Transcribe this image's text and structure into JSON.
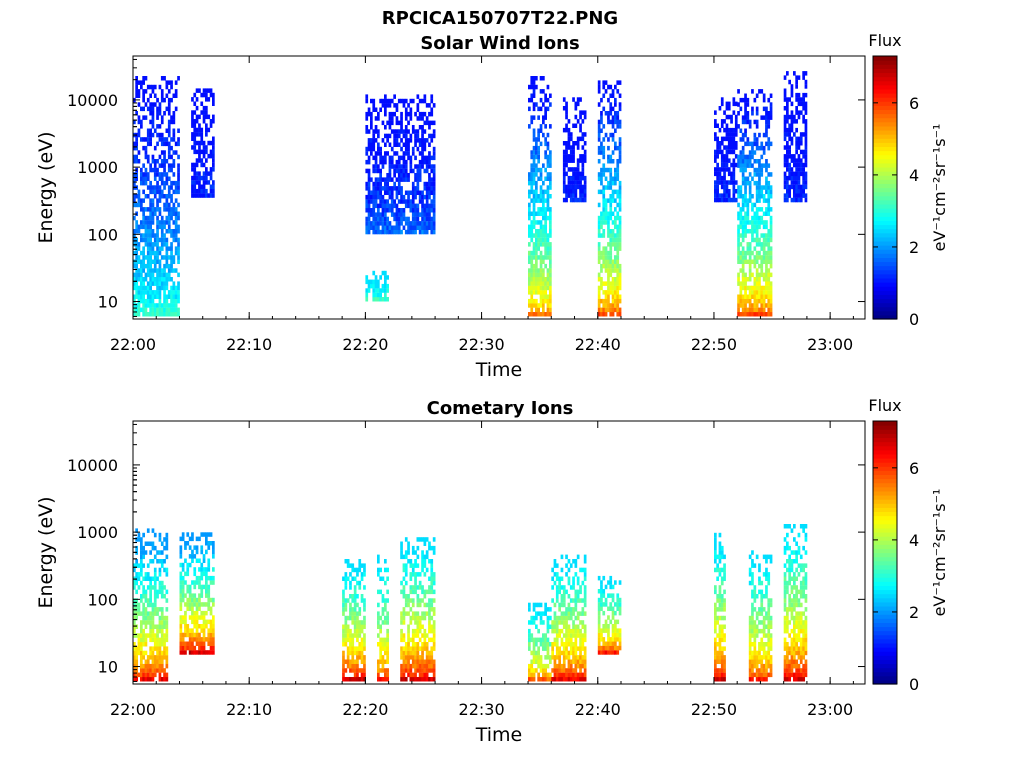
{
  "figure_title": "RPCICA150707T22.PNG",
  "chart_data": [
    {
      "type": "heatmap",
      "title": "Solar Wind Ions",
      "xlabel": "Time",
      "ylabel": "Energy (eV)",
      "yscale": "log",
      "xlim": [
        "22:00",
        "23:03"
      ],
      "ylim": [
        5.5,
        45000
      ],
      "x_ticks": [
        "22:00",
        "22:10",
        "22:20",
        "22:30",
        "22:40",
        "22:50",
        "23:00"
      ],
      "y_ticks": [
        10,
        100,
        1000,
        10000
      ],
      "y_tick_labels": [
        "10",
        "100",
        "1000",
        "10000"
      ],
      "colorbar": {
        "title": "Flux",
        "label": "eV⁻¹cm⁻²sr⁻¹s⁻¹",
        "range": [
          0,
          7.3
        ],
        "ticks": [
          "0",
          "2",
          "4",
          "6"
        ],
        "colormap": "jet"
      },
      "bursts": [
        {
          "start": "22:00",
          "end": "22:04",
          "energy_range": [
            6,
            20000
          ],
          "flux_range": [
            1.0,
            3.5
          ]
        },
        {
          "start": "22:05",
          "end": "22:07",
          "energy_range": [
            350,
            14000
          ],
          "flux_range": [
            1.0,
            1.5
          ]
        },
        {
          "start": "22:20",
          "end": "22:22",
          "energy_range": [
            10,
            25
          ],
          "flux_range": [
            2.5,
            3.5
          ]
        },
        {
          "start": "22:20",
          "end": "22:26",
          "energy_range": [
            100,
            12000
          ],
          "flux_range": [
            1.0,
            2.0
          ]
        },
        {
          "start": "22:34",
          "end": "22:36",
          "energy_range": [
            6,
            20000
          ],
          "flux_range": [
            1.0,
            5.8
          ]
        },
        {
          "start": "22:37",
          "end": "22:39",
          "energy_range": [
            300,
            10000
          ],
          "flux_range": [
            1.0,
            1.5
          ]
        },
        {
          "start": "22:40",
          "end": "22:42",
          "energy_range": [
            6,
            18000
          ],
          "flux_range": [
            1.0,
            6.2
          ]
        },
        {
          "start": "22:50",
          "end": "22:52",
          "energy_range": [
            300,
            10000
          ],
          "flux_range": [
            1.0,
            1.5
          ]
        },
        {
          "start": "22:52",
          "end": "22:55",
          "energy_range": [
            6,
            13000
          ],
          "flux_range": [
            1.0,
            6.2
          ]
        },
        {
          "start": "22:56",
          "end": "22:58",
          "energy_range": [
            300,
            25000
          ],
          "flux_range": [
            1.0,
            1.5
          ]
        }
      ]
    },
    {
      "type": "heatmap",
      "title": "Cometary Ions",
      "xlabel": "Time",
      "ylabel": "Energy (eV)",
      "yscale": "log",
      "xlim": [
        "22:00",
        "23:03"
      ],
      "ylim": [
        5.5,
        45000
      ],
      "x_ticks": [
        "22:00",
        "22:10",
        "22:20",
        "22:30",
        "22:40",
        "22:50",
        "23:00"
      ],
      "y_ticks": [
        10,
        100,
        1000,
        10000
      ],
      "y_tick_labels": [
        "10",
        "100",
        "1000",
        "10000"
      ],
      "colorbar": {
        "title": "Flux",
        "label": "eV⁻¹cm⁻²sr⁻¹s⁻¹",
        "range": [
          0,
          7.3
        ],
        "ticks": [
          "0",
          "2",
          "4",
          "6"
        ],
        "colormap": "jet"
      },
      "bursts": [
        {
          "start": "22:00",
          "end": "22:03",
          "energy_range": [
            6,
            1000
          ],
          "flux_range": [
            2.0,
            6.8
          ]
        },
        {
          "start": "22:04",
          "end": "22:07",
          "energy_range": [
            15,
            900
          ],
          "flux_range": [
            2.0,
            7.0
          ]
        },
        {
          "start": "22:18",
          "end": "22:20",
          "energy_range": [
            6,
            350
          ],
          "flux_range": [
            2.5,
            7.0
          ]
        },
        {
          "start": "22:21",
          "end": "22:22",
          "energy_range": [
            6,
            400
          ],
          "flux_range": [
            2.5,
            6.5
          ]
        },
        {
          "start": "22:23",
          "end": "22:26",
          "energy_range": [
            6,
            750
          ],
          "flux_range": [
            2.5,
            7.0
          ]
        },
        {
          "start": "22:34",
          "end": "22:36",
          "energy_range": [
            6,
            80
          ],
          "flux_range": [
            2.5,
            6.0
          ]
        },
        {
          "start": "22:36",
          "end": "22:39",
          "energy_range": [
            6,
            450
          ],
          "flux_range": [
            2.5,
            6.8
          ]
        },
        {
          "start": "22:40",
          "end": "22:42",
          "energy_range": [
            15,
            200
          ],
          "flux_range": [
            2.5,
            6.5
          ]
        },
        {
          "start": "22:50",
          "end": "22:51",
          "energy_range": [
            6,
            850
          ],
          "flux_range": [
            2.5,
            7.0
          ]
        },
        {
          "start": "22:53",
          "end": "22:55",
          "energy_range": [
            6,
            500
          ],
          "flux_range": [
            2.5,
            6.5
          ]
        },
        {
          "start": "22:56",
          "end": "22:58",
          "energy_range": [
            6,
            1300
          ],
          "flux_range": [
            2.5,
            7.0
          ]
        }
      ]
    }
  ]
}
